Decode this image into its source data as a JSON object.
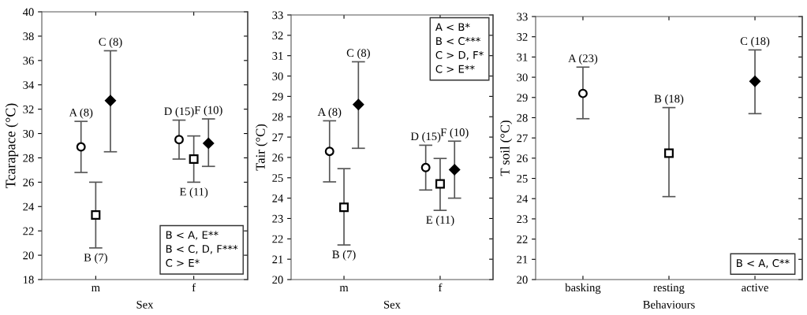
{
  "chart_data": [
    {
      "type": "scatter",
      "categories": [
        "m",
        "f"
      ],
      "xlabel": "Sex",
      "ylabel": "Tcarapace (°C)",
      "ylim": [
        18,
        40
      ],
      "yticks": [
        18,
        20,
        22,
        24,
        26,
        28,
        30,
        32,
        34,
        36,
        38,
        40
      ],
      "grid": false,
      "legend": false,
      "series": [
        {
          "color": "#ffffff",
          "marker": "circle",
          "values": [
            28.9,
            29.5
          ],
          "errors": [
            [
              26.8,
              31.0
            ],
            [
              27.9,
              31.1
            ]
          ]
        },
        {
          "color": "#ffffff",
          "marker": "square",
          "values": [
            23.3,
            27.9
          ],
          "errors": [
            [
              20.6,
              26.0
            ],
            [
              26.0,
              29.8
            ]
          ]
        },
        {
          "color": "#000000",
          "marker": "diamond",
          "values": [
            32.7,
            29.2
          ],
          "errors": [
            [
              28.5,
              36.8
            ],
            [
              27.3,
              31.2
            ]
          ]
        }
      ],
      "annotations": [
        "A (8)",
        "B (7)",
        "C (8)",
        "D (15)",
        "E (11)",
        "F (10)",
        "B < A, E**\nB < C, D, F***\nC > E*"
      ]
    },
    {
      "type": "scatter",
      "categories": [
        "m",
        "f"
      ],
      "xlabel": "Sex",
      "ylabel": "Tair (°C)",
      "ylim": [
        20,
        33
      ],
      "yticks": [
        20,
        21,
        22,
        23,
        24,
        25,
        26,
        27,
        28,
        29,
        30,
        31,
        32,
        33
      ],
      "grid": false,
      "legend": false,
      "series": [
        {
          "color": "#ffffff",
          "marker": "circle",
          "values": [
            26.3,
            25.5
          ],
          "errors": [
            [
              24.8,
              27.8
            ],
            [
              24.4,
              26.6
            ]
          ]
        },
        {
          "color": "#ffffff",
          "marker": "square",
          "values": [
            23.55,
            24.7
          ],
          "errors": [
            [
              21.7,
              25.45
            ],
            [
              23.4,
              25.95
            ]
          ]
        },
        {
          "color": "#000000",
          "marker": "diamond",
          "values": [
            28.6,
            25.4
          ],
          "errors": [
            [
              26.45,
              30.7
            ],
            [
              24.0,
              26.8
            ]
          ]
        }
      ],
      "annotations": [
        "A (8)",
        "B (7)",
        "C (8)",
        "D (15)",
        "E (11)",
        "F (10)",
        "A < B*\nB < C***\nC > D, F*\nC > E**"
      ]
    },
    {
      "type": "scatter",
      "categories": [
        "basking",
        "resting",
        "active"
      ],
      "xlabel": "Behaviours",
      "ylabel": "T soil (°C)",
      "ylim": [
        20,
        33
      ],
      "yticks": [
        20,
        21,
        22,
        23,
        24,
        25,
        26,
        27,
        28,
        29,
        30,
        31,
        32,
        33
      ],
      "grid": false,
      "legend": false,
      "series": [
        {
          "color": "#ffffff",
          "marker": "circle",
          "values": [
            29.2,
            null,
            null
          ],
          "errors": [
            [
              27.95,
              30.5
            ],
            null,
            null
          ]
        },
        {
          "color": "#ffffff",
          "marker": "square",
          "values": [
            null,
            26.25,
            null
          ],
          "errors": [
            null,
            [
              24.1,
              28.5
            ],
            null
          ]
        },
        {
          "color": "#000000",
          "marker": "diamond",
          "values": [
            null,
            null,
            29.8
          ],
          "errors": [
            null,
            null,
            [
              28.2,
              31.35
            ]
          ]
        }
      ],
      "annotations": [
        "A (23)",
        "B (18)",
        "C (18)",
        "B < A, C**"
      ]
    }
  ]
}
